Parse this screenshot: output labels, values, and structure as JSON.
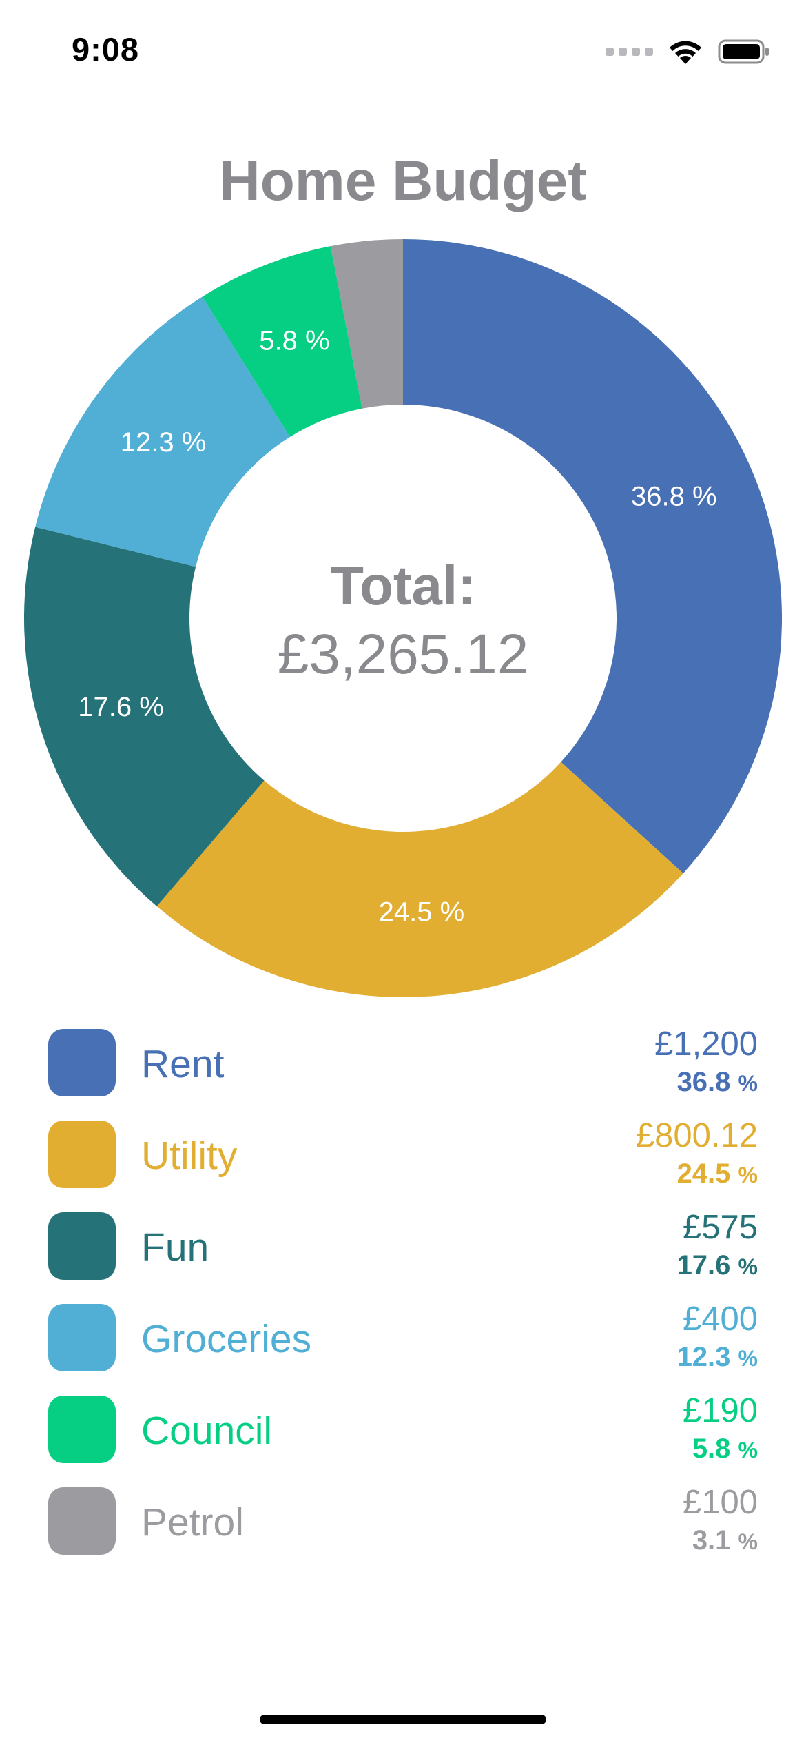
{
  "status_bar": {
    "time": "9:08"
  },
  "title": "Home Budget",
  "total": {
    "label": "Total:",
    "value": "£3,265.12"
  },
  "colors": {
    "rent": "#4870B4",
    "utility": "#E2AE31",
    "fun": "#257278",
    "groceries": "#51AED4",
    "council": "#06CE82",
    "petrol": "#9B9BA0"
  },
  "chart_data": {
    "type": "pie",
    "title": "Home Budget",
    "donut": true,
    "center_text": [
      "Total:",
      "£3,265.12"
    ],
    "categories": [
      "Rent",
      "Utility",
      "Fun",
      "Groceries",
      "Council",
      "Petrol"
    ],
    "values": [
      1200,
      800.12,
      575,
      400,
      190,
      100
    ],
    "percent_labels": [
      "36.8 %",
      "24.5 %",
      "17.6 %",
      "12.3 %",
      "5.8 %",
      ""
    ],
    "colors": [
      "#4870B4",
      "#E2AE31",
      "#257278",
      "#51AED4",
      "#06CE82",
      "#9B9BA0"
    ],
    "legend_placement": "bottom"
  },
  "legend": [
    {
      "name": "Rent",
      "amount": "£1,200",
      "percent": "36.8",
      "color": "#4870B4"
    },
    {
      "name": "Utility",
      "amount": "£800.12",
      "percent": "24.5",
      "color": "#E2AE31"
    },
    {
      "name": "Fun",
      "amount": "£575",
      "percent": "17.6",
      "color": "#257278"
    },
    {
      "name": "Groceries",
      "amount": "£400",
      "percent": "12.3",
      "color": "#51AED4"
    },
    {
      "name": "Council",
      "amount": "£190",
      "percent": "5.8",
      "color": "#06CE82"
    },
    {
      "name": "Petrol",
      "amount": "£100",
      "percent": "3.1",
      "color": "#9B9BA0"
    }
  ],
  "percent_sign": "%"
}
